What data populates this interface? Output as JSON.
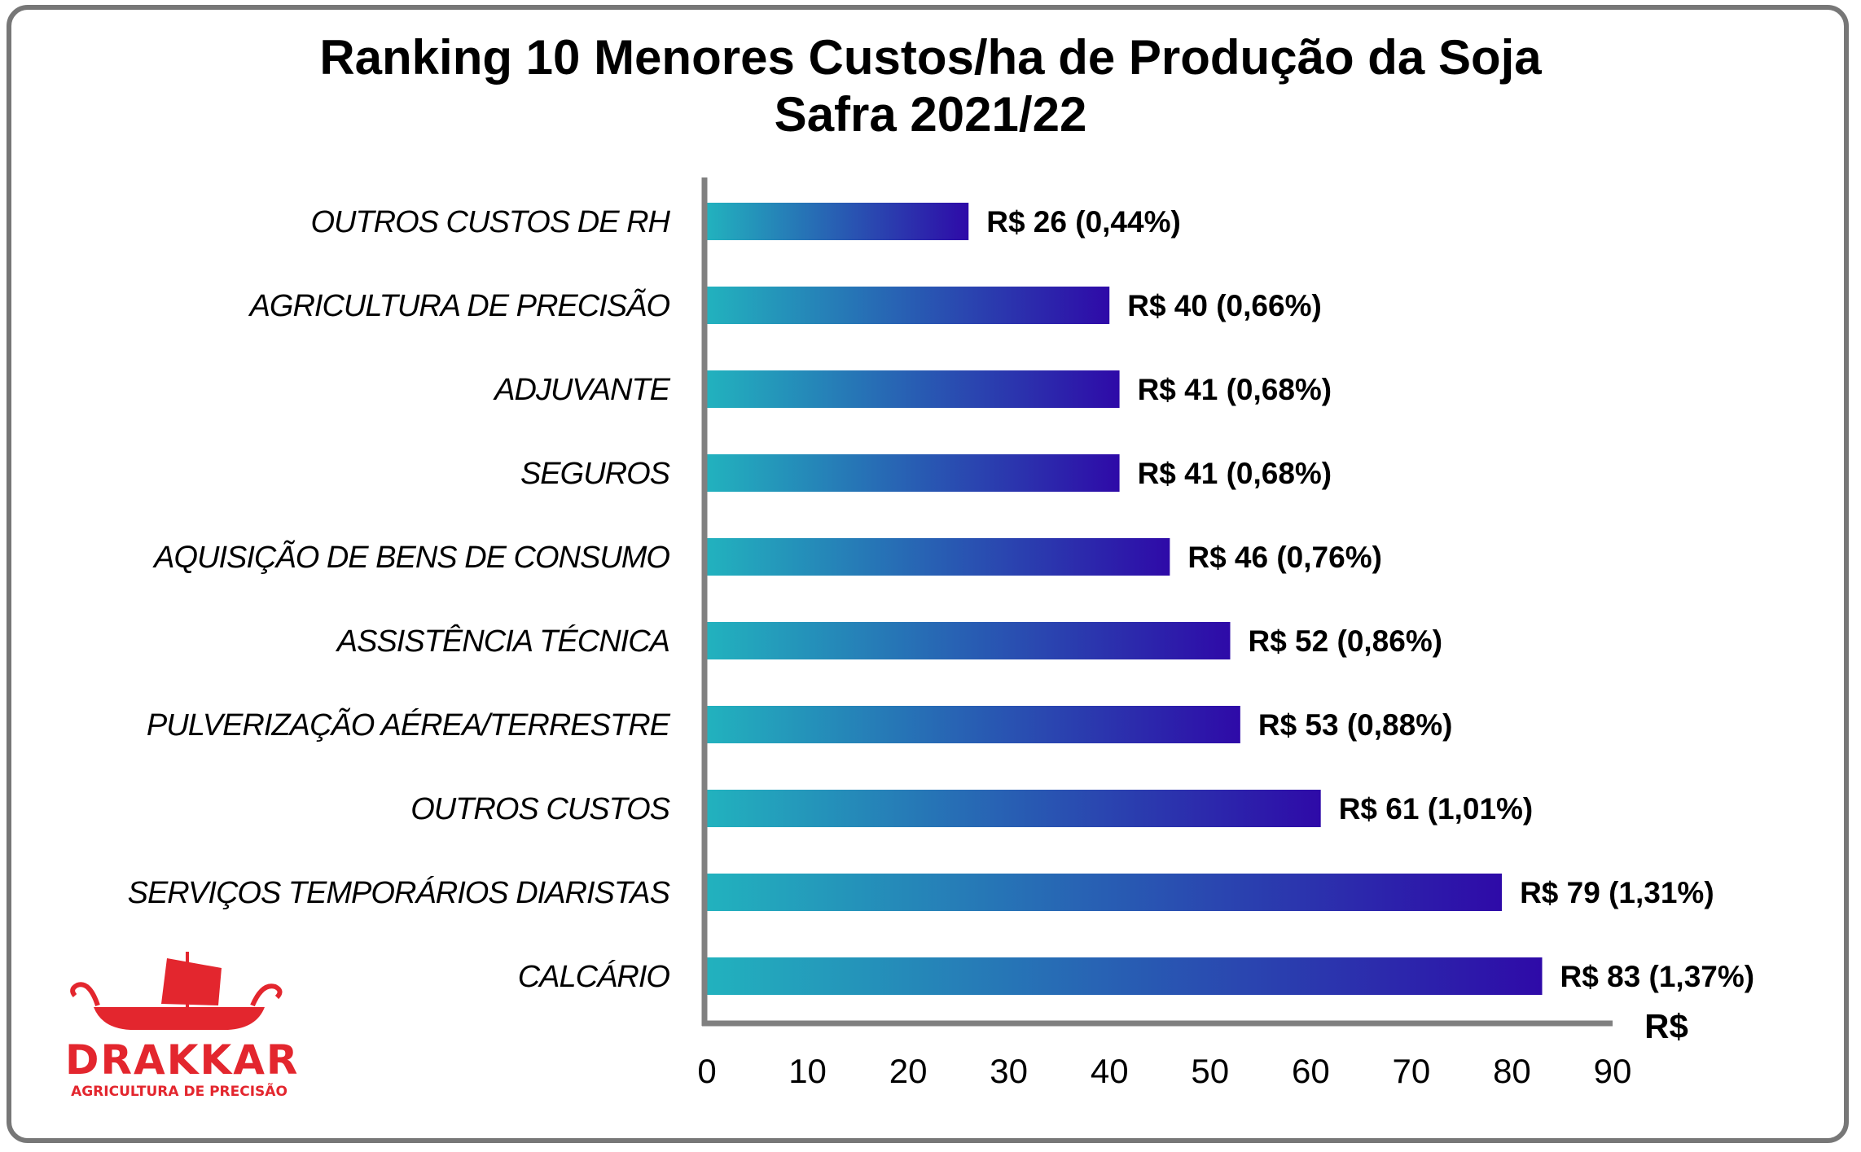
{
  "chart_data": {
    "type": "bar",
    "orientation": "horizontal",
    "title": "Ranking 10 Menores Custos/ha de Produção da Soja",
    "subtitle": "Safra 2021/22",
    "xlabel": "R$",
    "xlim": [
      0,
      90
    ],
    "xticks": [
      "0",
      "10",
      "20",
      "30",
      "40",
      "50",
      "60",
      "70",
      "80",
      "90"
    ],
    "categories": [
      "OUTROS CUSTOS DE RH",
      "AGRICULTURA DE PRECISÃO",
      "ADJUVANTE",
      "SEGUROS",
      "AQUISIÇÃO DE BENS DE CONSUMO",
      "ASSISTÊNCIA TÉCNICA",
      "PULVERIZAÇÃO AÉREA/TERRESTRE",
      "OUTROS CUSTOS",
      "SERVIÇOS TEMPORÁRIOS DIARISTAS",
      "CALCÁRIO"
    ],
    "values": [
      26,
      40,
      41,
      41,
      46,
      52,
      53,
      61,
      79,
      83
    ],
    "data_labels": [
      "R$ 26 (0,44%)",
      "R$ 40 (0,66%)",
      "R$ 41 (0,68%)",
      "R$ 41 (0,68%)",
      "R$ 46 (0,76%)",
      "R$ 52 (0,86%)",
      "R$ 53 (0,88%)",
      "R$ 61 (1,01%)",
      "R$ 79 (1,31%)",
      "R$ 83 (1,37%)"
    ],
    "bar_gradient": [
      "#22b2be",
      "#2e0aa8"
    ],
    "axis_color": "#808080",
    "grid": false,
    "legend": "none"
  },
  "logo": {
    "name": "DRAKKAR",
    "tagline": "AGRICULTURA DE PRECISÃO",
    "color": "#e3262e"
  }
}
